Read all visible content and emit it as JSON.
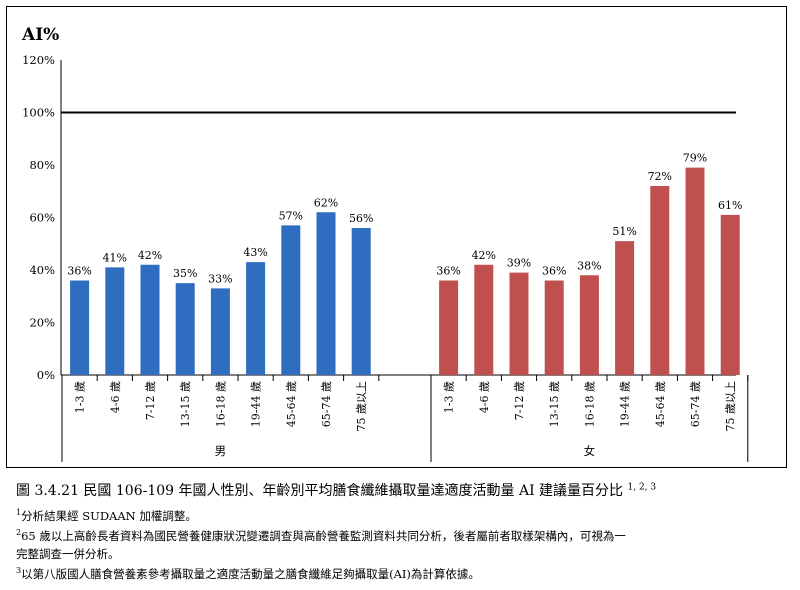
{
  "chart_data": {
    "type": "bar",
    "ylabel": "AI%",
    "ylim": [
      0,
      120
    ],
    "yticks": [
      "0%",
      "20%",
      "40%",
      "60%",
      "80%",
      "100%",
      "120%"
    ],
    "reference_line": 100,
    "groups": [
      {
        "name": "男",
        "color": "#2e6dbf",
        "categories": [
          "1-3 歲",
          "4-6 歲",
          "7-12 歲",
          "13-15 歲",
          "16-18 歲",
          "19-44 歲",
          "45-64 歲",
          "65-74 歲",
          "75 歲以上"
        ],
        "values": [
          36,
          41,
          42,
          35,
          33,
          43,
          57,
          62,
          56
        ],
        "labels": [
          "36%",
          "41%",
          "42%",
          "35%",
          "33%",
          "43%",
          "57%",
          "62%",
          "56%"
        ]
      },
      {
        "name": "女",
        "color": "#c0504d",
        "categories": [
          "1-3 歲",
          "4-6 歲",
          "7-12 歲",
          "13-15 歲",
          "16-18 歲",
          "19-44 歲",
          "45-64 歲",
          "65-74 歲",
          "75 歲以上"
        ],
        "values": [
          36,
          42,
          39,
          36,
          38,
          51,
          72,
          79,
          61
        ],
        "labels": [
          "36%",
          "42%",
          "39%",
          "36%",
          "38%",
          "51%",
          "72%",
          "79%",
          "61%"
        ]
      }
    ]
  },
  "caption": {
    "text": "圖 3.4.21 民國 106-109 年國人性別、年齡別平均膳食纖維攝取量達適度活動量 AI 建議量百分比",
    "sup": "1, 2, 3"
  },
  "notes": [
    {
      "sup": "1",
      "text": "分析結果經 SUDAAN 加權調整。"
    },
    {
      "sup": "2",
      "text": "65 歲以上高齡長者資料為國民營養健康狀況變遷調查與高齡營養監測資料共同分析，後者屬前者取樣架構內，可視為一"
    },
    {
      "sup": "",
      "text": "完整調查一併分析。"
    },
    {
      "sup": "3",
      "text": "以第八版國人膳食營養素參考攝取量之適度活動量之膳食纖維足夠攝取量(AI)為計算依據。"
    }
  ]
}
